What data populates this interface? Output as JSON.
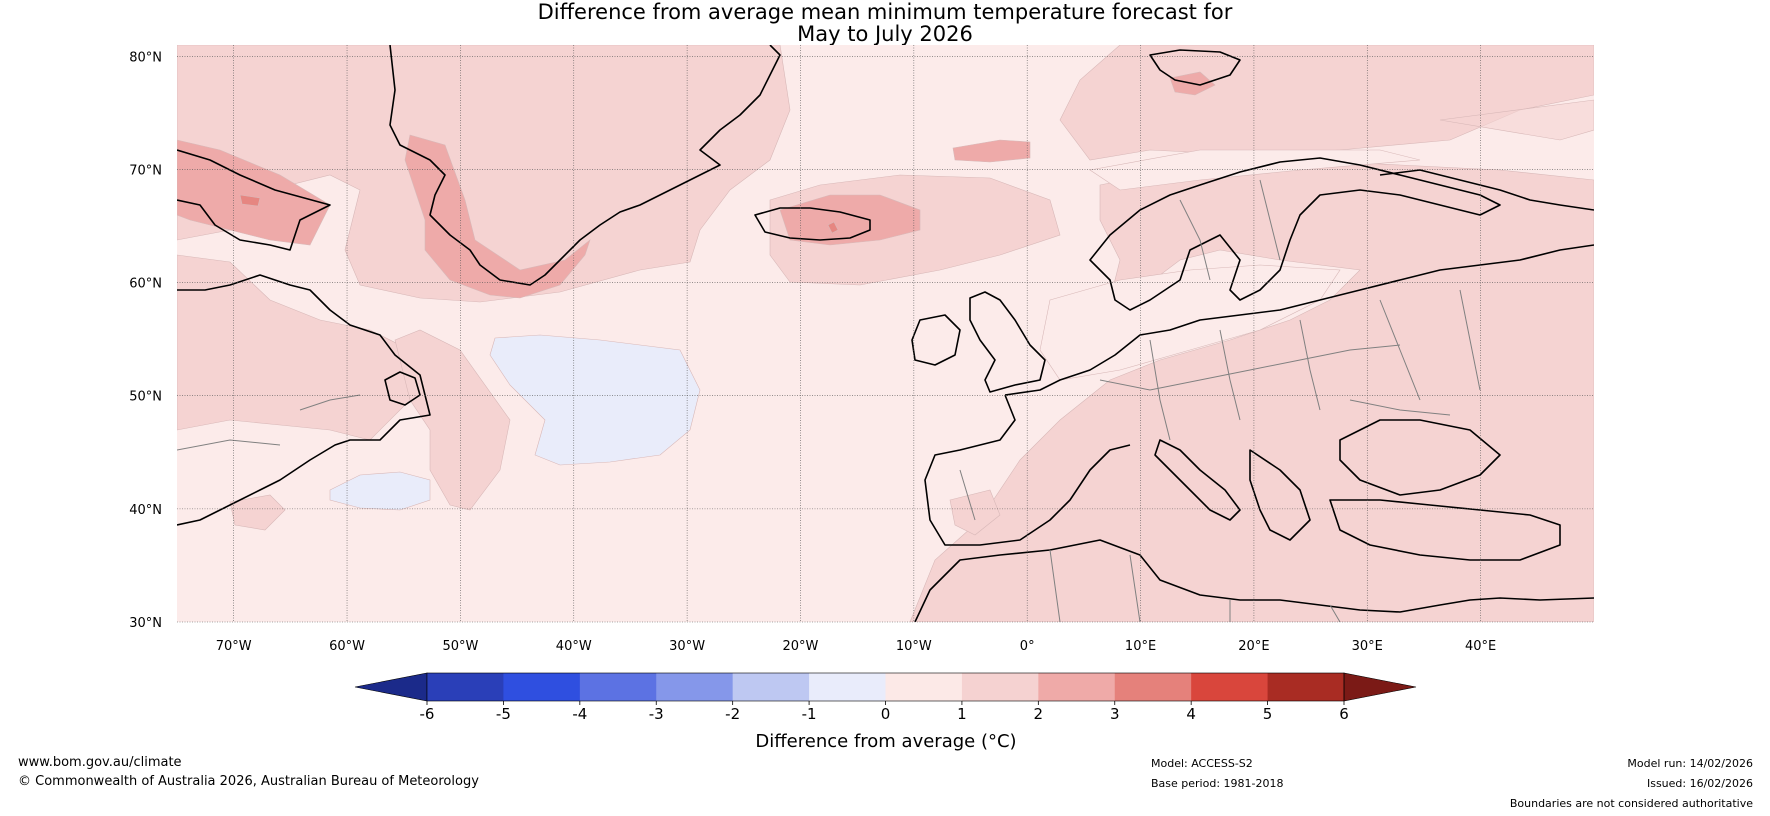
{
  "title": {
    "line1": "Difference from average mean minimum temperature forecast for",
    "line2": "May to July 2026"
  },
  "map": {
    "lat_labels": [
      "80°N",
      "70°N",
      "60°N",
      "50°N",
      "40°N",
      "30°N"
    ],
    "lon_labels": [
      "70°W",
      "60°W",
      "50°W",
      "40°W",
      "30°W",
      "20°W",
      "10°W",
      "0°",
      "10°E",
      "20°E",
      "30°E",
      "40°E"
    ],
    "extent": {
      "lon_min": -75,
      "lon_max": 50,
      "lat_min": 30,
      "lat_max": 81
    },
    "colors": {
      "bin_0_1": "#fcebea",
      "bin_1_2": "#f5d3d2",
      "bin_2_3": "#eeaaa9",
      "bin_3_4": "#e68681",
      "bin_m1_0": "#e9ecfa",
      "coast": "#000000",
      "border": "#808080"
    }
  },
  "colorbar": {
    "ticks": [
      "-6",
      "-5",
      "-4",
      "-3",
      "-2",
      "-1",
      "0",
      "1",
      "2",
      "3",
      "4",
      "5",
      "6"
    ],
    "colors": [
      "#1b2a8a",
      "#2a3fb8",
      "#2f4fe0",
      "#5c72e3",
      "#8597ea",
      "#bec8f2",
      "#e9ecfb",
      "#fce9e7",
      "#f5d2d1",
      "#efaaa8",
      "#e5817b",
      "#d9463c",
      "#a92c23",
      "#7b1a16"
    ],
    "label": "Difference from average (°C)"
  },
  "footer": {
    "website": "www.bom.gov.au/climate",
    "copyright": "© Commonwealth of Australia 2026, Australian Bureau of Meteorology",
    "model": "Model: ACCESS-S2",
    "base_period": "Base period: 1981-2018",
    "model_run": "Model run: 14/02/2026",
    "issued": "Issued: 16/02/2026",
    "disclaimer": "Boundaries are not considered authoritative"
  }
}
